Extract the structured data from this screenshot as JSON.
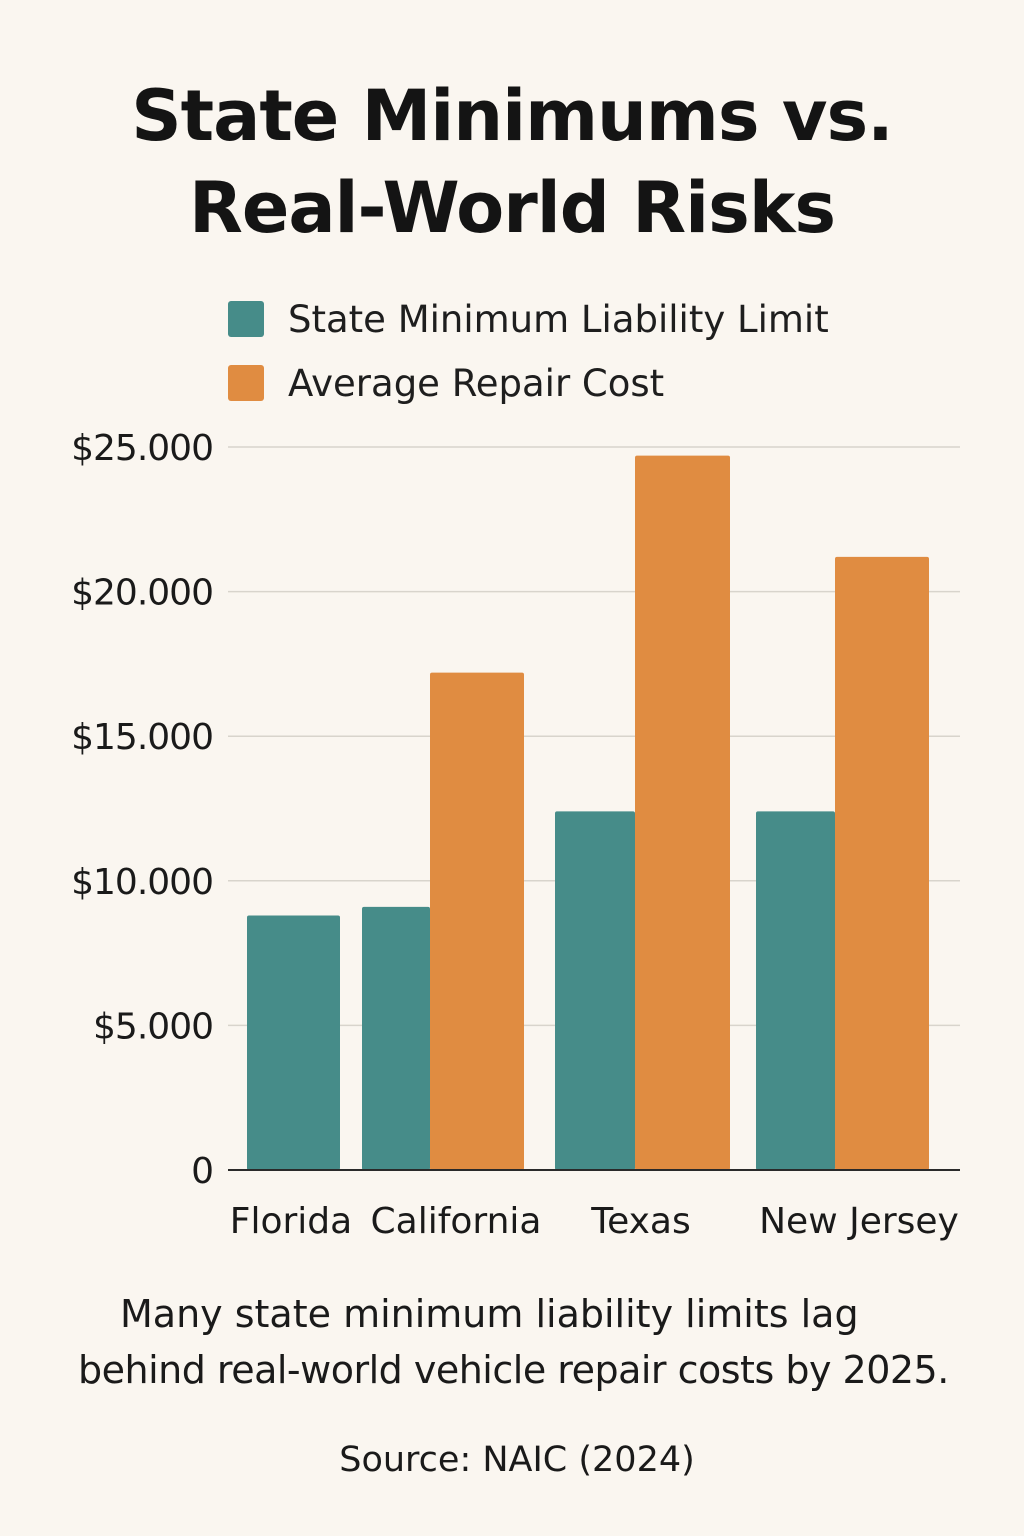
{
  "title_line1": "State Minimums vs.",
  "title_line2": "Real-World Risks",
  "caption_line1": "Many state minimum liability limits lag",
  "caption_line2": "behind real-world vehicle repair costs by 2025.",
  "source": "Source: NAIC (2024)",
  "chart_data": {
    "type": "bar",
    "title": "State Minimums vs. Real-World Risks",
    "categories": [
      "Florida",
      "California",
      "Texas",
      "New Jersey"
    ],
    "series": [
      {
        "name": "State Minimum Liability Limit",
        "color": "#468c89",
        "values": [
          8800,
          9100,
          12400,
          12400
        ]
      },
      {
        "name": "Average Repair Cost",
        "color": "#e08c41",
        "values": [
          null,
          17200,
          24700,
          21200
        ]
      }
    ],
    "y_ticks": [
      0,
      5000,
      10000,
      15000,
      20000,
      25000
    ],
    "y_tick_labels": [
      "0",
      "$5.000",
      "$10.000",
      "$15.000",
      "$20.000",
      "$25.000"
    ],
    "ylim": [
      0,
      25000
    ],
    "xlabel": "",
    "ylabel": "",
    "grid": true,
    "legend_position": "top"
  }
}
